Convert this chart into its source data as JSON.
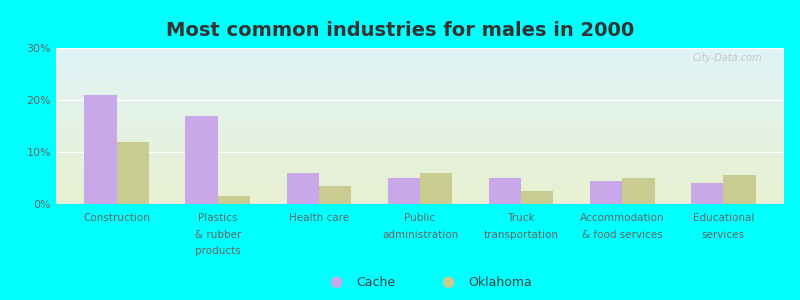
{
  "title": "Most common industries for males in 2000",
  "categories": [
    "Construction",
    "Plastics\n& rubber\nproducts",
    "Health care",
    "Public\nadministration",
    "Truck\ntransportation",
    "Accommodation\n& food services",
    "Educational\nservices"
  ],
  "cache_values": [
    21.0,
    17.0,
    6.0,
    5.0,
    5.0,
    4.5,
    4.0
  ],
  "oklahoma_values": [
    12.0,
    1.5,
    3.5,
    6.0,
    2.5,
    5.0,
    5.5
  ],
  "cache_color": "#c8a8e8",
  "oklahoma_color": "#c8cc90",
  "background_top": "#e0f4f8",
  "background_bottom": "#e8f0d0",
  "outer_background": "#00ffff",
  "ylim": [
    0,
    30
  ],
  "yticks": [
    0,
    10,
    20,
    30
  ],
  "ytick_labels": [
    "0%",
    "10%",
    "20%",
    "30%"
  ],
  "title_fontsize": 14,
  "legend_cache": "Cache",
  "legend_oklahoma": "Oklahoma",
  "bar_width": 0.32,
  "watermark": "City-Data.com"
}
